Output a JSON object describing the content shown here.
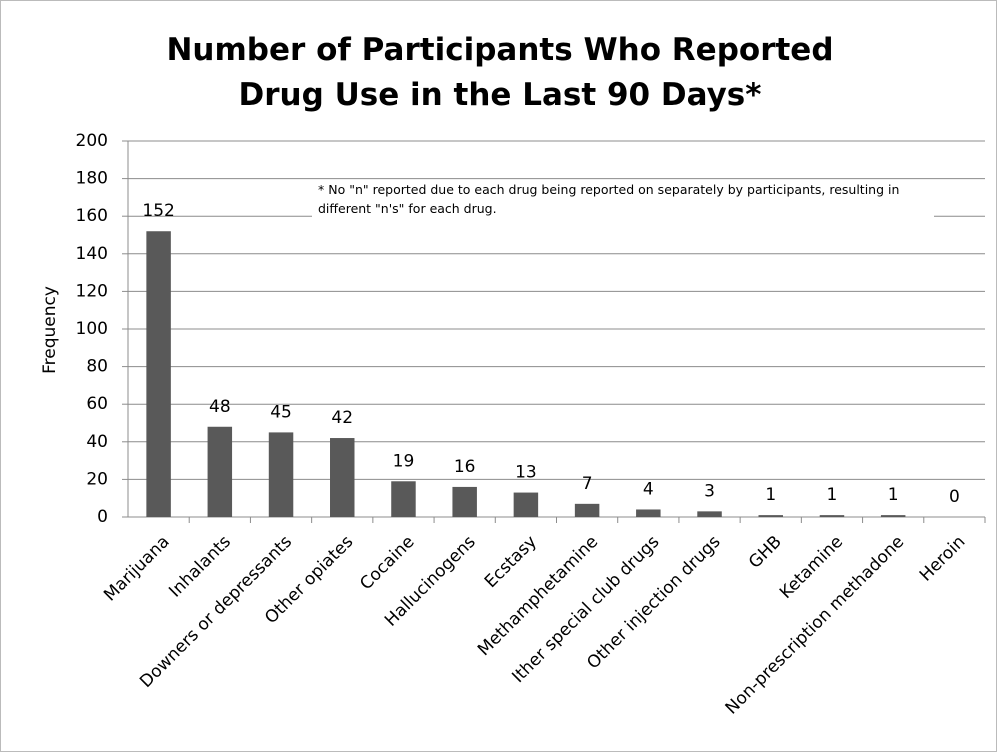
{
  "chart_data": {
    "type": "bar",
    "title": "Number of Participants Who Reported Drug Use in the Last 90 Days*",
    "y_label": "Frequency",
    "annotation": "* No \"n\" reported due to each drug being reported on separately by participants, resulting in different \"n's\" for each drug.",
    "categories": [
      "Marijuana",
      "Inhalants",
      "Downers or depressants",
      "Other opiates",
      "Cocaine",
      "Hallucinogens",
      "Ecstasy",
      "Methamphetamine",
      "Ither special club drugs",
      "Other injection drugs",
      "GHB",
      "Ketamine",
      "Non-prescription methadone",
      "Heroin"
    ],
    "values": [
      152,
      48,
      45,
      42,
      19,
      16,
      13,
      7,
      4,
      3,
      1,
      1,
      1,
      0
    ],
    "color": "#595959",
    "ylim": [
      0,
      200
    ],
    "yticks": [
      0,
      20,
      40,
      60,
      80,
      100,
      120,
      140,
      160,
      180,
      200
    ],
    "grid": true
  }
}
